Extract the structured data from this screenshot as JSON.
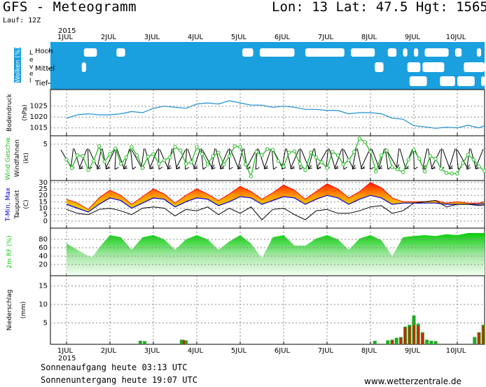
{
  "header": {
    "title": "GFS - Meteogramm",
    "coords": "Lon: 13 Lat: 47.5 Hgt: 1565m",
    "run": "Lauf: 12Z",
    "year": "2015"
  },
  "footer": {
    "sunrise": "Sonnenaufgang heute 03:13 UTC",
    "sunset": "Sonnenuntergang heute 19:07 UTC",
    "credit": "www.wetterzentrale.de"
  },
  "days": [
    "1JUL",
    "2JUL",
    "3JUL",
    "4JUL",
    "5JUL",
    "6JUL",
    "7JUL",
    "8JUL",
    "9JUL",
    "10JUL"
  ],
  "colors": {
    "cloud_sky": "#1a9fdf",
    "pressure": "#1a8fcf",
    "wind": "#22bb22",
    "tmax": "#ff0000",
    "tmin": "#0000cc",
    "rh": "#11cc11",
    "precip_total": "#22aa22",
    "precip_conv": "#cc2200"
  },
  "chart_data": [
    {
      "type": "heatmap",
      "name": "clouds",
      "panel_label_box": "Wolken (%)",
      "panel_label": "Level",
      "levels": [
        "Hoch",
        "Mittel",
        "Tief"
      ],
      "clear_spans": {
        "Hoch": [
          [
            0.4,
            0.7
          ],
          [
            1.15,
            1.35
          ],
          [
            4.05,
            4.3
          ],
          [
            4.45,
            5.25
          ],
          [
            5.5,
            6.4
          ],
          [
            6.55,
            7.1
          ],
          [
            7.4,
            7.6
          ],
          [
            7.75,
            7.85
          ],
          [
            8.0,
            8.1
          ],
          [
            8.25,
            8.8
          ],
          [
            8.95,
            9.1
          ],
          [
            9.45,
            9.55
          ]
        ],
        "Mittel": [
          [
            0.35,
            0.45
          ],
          [
            7.1,
            7.3
          ],
          [
            7.85,
            8.15
          ],
          [
            8.2,
            8.7
          ],
          [
            9.15,
            9.7
          ],
          [
            9.9,
            10.15
          ]
        ],
        "Tief": [
          [
            7.9,
            8.3
          ],
          [
            8.6,
            8.95
          ],
          [
            9.0,
            9.4
          ],
          [
            9.55,
            9.85
          ],
          [
            10.1,
            10.35
          ]
        ]
      }
    },
    {
      "type": "line",
      "name": "pressure",
      "panel_label": "Bodendruck",
      "ylabel": "(hPa)",
      "yticks": [
        1015,
        1020,
        1025
      ],
      "ylim": [
        1012,
        1032
      ],
      "x": [
        0,
        0.25,
        0.5,
        0.75,
        1,
        1.25,
        1.5,
        1.75,
        2,
        2.25,
        2.5,
        2.75,
        3,
        3.25,
        3.5,
        3.75,
        4,
        4.25,
        4.5,
        4.75,
        5,
        5.25,
        5.5,
        5.75,
        6,
        6.25,
        6.5,
        6.75,
        7,
        7.25,
        7.5,
        7.75,
        8,
        8.25,
        8.5,
        8.75,
        9,
        9.25,
        9.5,
        9.75,
        10,
        10.25
      ],
      "values": [
        1019.5,
        1021,
        1021.5,
        1021,
        1021,
        1021.5,
        1022.5,
        1022,
        1024,
        1025,
        1024.5,
        1024,
        1026,
        1026.5,
        1026,
        1027.5,
        1026.5,
        1025.5,
        1025.5,
        1024.5,
        1025,
        1024.5,
        1023.5,
        1023.5,
        1023,
        1023,
        1021.5,
        1022,
        1022,
        1021.5,
        1019.5,
        1019,
        1016,
        1015.5,
        1014.8,
        1015.3,
        1015,
        1016.2,
        1015,
        1017,
        1015.5,
        1017.8
      ]
    },
    {
      "type": "line",
      "name": "wind",
      "panel_label_primary": "Wind Geschw.",
      "panel_label_secondary": "Windfahnen",
      "ylabel": "(kt)",
      "yticks": [
        5
      ],
      "ylim": [
        0,
        6
      ],
      "x": [
        0,
        0.125,
        0.25,
        0.375,
        0.5,
        0.625,
        0.75,
        0.875,
        1,
        1.125,
        1.25,
        1.375,
        1.5,
        1.625,
        1.75,
        1.875,
        2,
        2.125,
        2.25,
        2.375,
        2.5,
        2.625,
        2.75,
        2.875,
        3,
        3.125,
        3.25,
        3.375,
        3.5,
        3.625,
        3.75,
        3.875,
        4,
        4.125,
        4.25,
        4.375,
        4.5,
        4.625,
        4.75,
        4.875,
        5,
        5.125,
        5.25,
        5.375,
        5.5,
        5.625,
        5.75,
        5.875,
        6,
        6.125,
        6.25,
        6.375,
        6.5,
        6.625,
        6.75,
        6.875,
        7,
        7.125,
        7.25,
        7.375,
        7.5,
        7.625,
        7.75,
        7.875,
        8,
        8.125,
        8.25,
        8.375,
        8.5,
        8.625,
        8.75,
        8.875,
        9,
        9.125,
        9.25,
        9.375,
        9.5,
        9.625,
        9.75,
        9.875,
        10,
        10.125,
        10.25
      ],
      "values": [
        2.8,
        1.6,
        3.4,
        3.3,
        1.3,
        2.6,
        4.7,
        2.5,
        3.6,
        4.4,
        2.2,
        3.1,
        4.6,
        3.4,
        1.6,
        3.2,
        3.6,
        2.2,
        2.7,
        3.1,
        4.6,
        4.1,
        2.2,
        2.4,
        4.6,
        3.6,
        2.1,
        3.3,
        3.8,
        2.1,
        3.3,
        4.7,
        4.6,
        2.1,
        0.4,
        3.9,
        3.4,
        4.3,
        4.2,
        2.6,
        1.8,
        3.8,
        4.0,
        2.2,
        1.3,
        3.8,
        3.1,
        2.4,
        1.6,
        3.9,
        3.4,
        2.1,
        2.7,
        3.9,
        5.8,
        5.3,
        3.9,
        1.1,
        3.4,
        4.1,
        1.7,
        1.4,
        1.0,
        2.8,
        4.2,
        2.9,
        1.1,
        3.3,
        2.9,
        1.5,
        0.9,
        0.8,
        0.8,
        2.3,
        3.5,
        2.8,
        1.8,
        1.2,
        1.3,
        1.5,
        3.2,
        2.2,
        3.6
      ]
    },
    {
      "type": "line",
      "name": "temperature",
      "panel_label_primary": "T-Min, Max",
      "panel_label_secondary": "Taupunkt",
      "ylabel": "(C)",
      "yticks": [
        0,
        5,
        10,
        15,
        20,
        25,
        30
      ],
      "ylim": [
        -5,
        31
      ],
      "x": [
        0,
        0.25,
        0.5,
        0.75,
        1,
        1.25,
        1.5,
        1.75,
        2,
        2.25,
        2.5,
        2.75,
        3,
        3.25,
        3.5,
        3.75,
        4,
        4.25,
        4.5,
        4.75,
        5,
        5.25,
        5.5,
        5.75,
        6,
        6.25,
        6.5,
        6.75,
        7,
        7.25,
        7.5,
        7.75,
        8,
        8.25,
        8.5,
        8.75,
        9,
        9.25,
        9.5,
        9.75,
        10,
        10.25
      ],
      "series": [
        {
          "name": "T-Max",
          "values": [
            17,
            14,
            9,
            18,
            24,
            20,
            13,
            19,
            25,
            21,
            14,
            20,
            25,
            21,
            16,
            21,
            27,
            23,
            17,
            22,
            28,
            24,
            17,
            23,
            29,
            25,
            18,
            23,
            30,
            26,
            18,
            15,
            15,
            15,
            16,
            14,
            15,
            14,
            14,
            16,
            14,
            12
          ]
        },
        {
          "name": "T-Min",
          "values": [
            13,
            10,
            7,
            13,
            18,
            16,
            10,
            14,
            18,
            17,
            11,
            15,
            18,
            17,
            12,
            15,
            19,
            18,
            13,
            16,
            19,
            18,
            13,
            17,
            20,
            18,
            13,
            17,
            20,
            18,
            13,
            14,
            14,
            14,
            14,
            13,
            13,
            13,
            13,
            14,
            12,
            11
          ]
        },
        {
          "name": "Taupunkt",
          "values": [
            9,
            6,
            5,
            9,
            10,
            8,
            5,
            10,
            11,
            10,
            4,
            9,
            8,
            11,
            5,
            10,
            6,
            11,
            1,
            9,
            10,
            5,
            1,
            8,
            9,
            6,
            6,
            8,
            11,
            12,
            6,
            8,
            14,
            15,
            16,
            11,
            13,
            13,
            12,
            13,
            11,
            10
          ]
        }
      ]
    },
    {
      "type": "area",
      "name": "humidity",
      "panel_label": "2m RF (%)",
      "yticks": [
        20,
        40,
        60,
        80
      ],
      "ylim": [
        0,
        100
      ],
      "x": [
        0,
        0.25,
        0.5,
        0.6,
        0.75,
        1,
        1.25,
        1.5,
        1.75,
        2,
        2.25,
        2.5,
        2.75,
        3,
        3.25,
        3.5,
        3.75,
        4,
        4.25,
        4.5,
        4.75,
        5,
        5.25,
        5.5,
        5.75,
        6,
        6.25,
        6.5,
        6.75,
        7,
        7.25,
        7.5,
        7.75,
        8,
        8.25,
        8.5,
        8.75,
        9,
        9.25,
        9.5,
        9.75,
        10,
        10.25
      ],
      "values": [
        70,
        55,
        40,
        38,
        60,
        90,
        85,
        55,
        85,
        90,
        80,
        55,
        80,
        90,
        80,
        55,
        75,
        90,
        70,
        35,
        85,
        90,
        65,
        65,
        82,
        90,
        80,
        55,
        82,
        90,
        78,
        40,
        85,
        88,
        90,
        88,
        92,
        90,
        95,
        95,
        95,
        98,
        98
      ]
    },
    {
      "type": "bar",
      "name": "precipitation",
      "panel_label": "Niederschlag",
      "ylabel": "(mm)",
      "yticks": [
        5,
        10,
        15
      ],
      "ylim": [
        0,
        17
      ],
      "series": [
        {
          "name": "total",
          "x": [
            1.7,
            1.8,
            2.65,
            2.75,
            7.1,
            7.4,
            7.5,
            7.6,
            7.7,
            7.8,
            7.9,
            8.0,
            8.1,
            8.2,
            8.3,
            8.4,
            8.5,
            9.4,
            9.5,
            9.6,
            9.7,
            9.8,
            9.9,
            10.0,
            10.1,
            10.2
          ],
          "values": [
            0.2,
            0.1,
            0.5,
            0.3,
            0.2,
            0.3,
            0.5,
            1.0,
            1.2,
            4.0,
            4.5,
            7.0,
            4.8,
            2.5,
            0.5,
            0.2,
            0.1,
            1.2,
            2.5,
            4.5,
            3.3,
            3.0,
            2.0,
            1.5,
            1.5,
            1.0
          ]
        },
        {
          "name": "convective",
          "x": [
            2.7,
            7.5,
            7.7,
            7.8,
            7.9,
            8.0,
            8.1,
            8.2,
            9.5,
            9.6,
            9.7,
            9.8,
            9.9,
            10.0
          ],
          "values": [
            0.4,
            0.3,
            1.0,
            3.8,
            4.0,
            4.5,
            4.2,
            2.2,
            2.4,
            4.3,
            3.0,
            2.6,
            1.8,
            1.2
          ]
        }
      ]
    }
  ]
}
